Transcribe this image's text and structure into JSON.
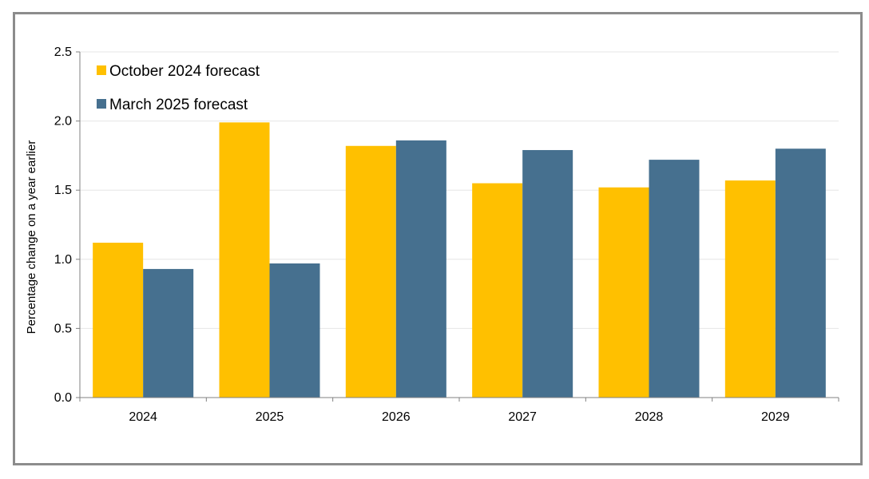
{
  "chart_data": {
    "type": "bar",
    "title": "",
    "xlabel": "",
    "ylabel": "Percentage change on a year earlier",
    "categories": [
      "2024",
      "2025",
      "2026",
      "2027",
      "2028",
      "2029"
    ],
    "series": [
      {
        "name": "October 2024 forecast",
        "color": "#FFC000",
        "values": [
          1.12,
          1.99,
          1.82,
          1.55,
          1.52,
          1.57
        ]
      },
      {
        "name": "March 2025 forecast",
        "color": "#46708F",
        "values": [
          0.93,
          0.97,
          1.86,
          1.79,
          1.72,
          1.8
        ]
      }
    ],
    "ylim": [
      0,
      2.5
    ],
    "yticks": [
      "0.0",
      "0.5",
      "1.0",
      "1.5",
      "2.0",
      "2.5"
    ],
    "grid": true,
    "legend_position": "top-left"
  }
}
